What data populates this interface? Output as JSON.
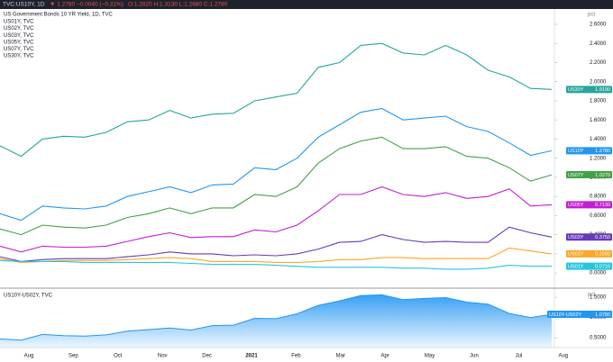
{
  "header": {
    "symbol": "TVC:US10Y, 1D",
    "change": "▼ 1.2780 −0.0040 (−0.31%)",
    "ohlc": "O:1.2820 H:1.3130 L:1.2680 C:1.2780"
  },
  "chart_data": [
    {
      "type": "line",
      "title": "US Government Bonds 10 YR Yield, 1D, TVC",
      "legend": [
        "US01Y, TVC",
        "US02Y, TVC",
        "US03Y, TVC",
        "US05Y, TVC",
        "US07Y, TVC",
        "US30Y, TVC"
      ],
      "y_label": "pct",
      "ylim": [
        -0.14,
        2.76
      ],
      "yticks": [
        {
          "value": 0,
          "label": "0.0000"
        },
        {
          "value": 0.2,
          "label": "0.2000"
        },
        {
          "value": 0.4,
          "label": "0.4000"
        },
        {
          "value": 0.6,
          "label": "0.6000"
        },
        {
          "value": 0.8,
          "label": "0.8000"
        },
        {
          "value": 1,
          "label": "1.0000"
        },
        {
          "value": 1.2,
          "label": "1.2000"
        },
        {
          "value": 1.4,
          "label": "1.4000"
        },
        {
          "value": 1.6,
          "label": "1.6000"
        },
        {
          "value": 1.8,
          "label": "1.8000"
        },
        {
          "value": 2,
          "label": "2.0000"
        },
        {
          "value": 2.2,
          "label": "2.2000"
        },
        {
          "value": 2.4,
          "label": "2.4000"
        },
        {
          "value": 2.6,
          "label": "2.6000"
        }
      ],
      "series": [
        {
          "name": "US30Y",
          "color": "#26a69a",
          "values": [
            1.33,
            1.22,
            1.4,
            1.43,
            1.42,
            1.47,
            1.58,
            1.6,
            1.7,
            1.62,
            1.66,
            1.67,
            1.8,
            1.84,
            1.88,
            2.15,
            2.2,
            2.38,
            2.4,
            2.3,
            2.28,
            2.38,
            2.28,
            2.12,
            2.05,
            1.93,
            1.919
          ],
          "value_labels": [
            null,
            null,
            null,
            null,
            null,
            null,
            null,
            null,
            null,
            null,
            null,
            null,
            null,
            null,
            null,
            null,
            null,
            null,
            null,
            null,
            null,
            null,
            null,
            null,
            null,
            null,
            "1.9190"
          ]
        },
        {
          "name": "US10Y",
          "color": "#2196f3",
          "values": [
            0.62,
            0.55,
            0.7,
            0.68,
            0.67,
            0.7,
            0.8,
            0.85,
            0.9,
            0.84,
            0.92,
            0.93,
            1.1,
            1.08,
            1.2,
            1.42,
            1.55,
            1.68,
            1.72,
            1.6,
            1.62,
            1.64,
            1.53,
            1.48,
            1.36,
            1.23,
            1.278
          ],
          "value_labels": [
            null,
            null,
            null,
            null,
            null,
            null,
            null,
            null,
            null,
            null,
            null,
            null,
            null,
            null,
            null,
            null,
            null,
            null,
            null,
            null,
            null,
            null,
            null,
            null,
            null,
            null,
            "1.2780"
          ]
        },
        {
          "name": "US07Y",
          "color": "#43a047",
          "values": [
            0.46,
            0.4,
            0.5,
            0.48,
            0.47,
            0.5,
            0.58,
            0.62,
            0.68,
            0.62,
            0.68,
            0.68,
            0.82,
            0.8,
            0.9,
            1.15,
            1.3,
            1.38,
            1.42,
            1.3,
            1.3,
            1.32,
            1.22,
            1.2,
            1.1,
            0.96,
            1.027
          ],
          "value_labels": [
            null,
            null,
            null,
            null,
            null,
            null,
            null,
            null,
            null,
            null,
            null,
            null,
            null,
            null,
            null,
            null,
            null,
            null,
            null,
            null,
            null,
            null,
            null,
            null,
            null,
            null,
            "1.0270"
          ]
        },
        {
          "name": "US05Y",
          "color": "#c21fd1",
          "values": [
            0.28,
            0.22,
            0.28,
            0.27,
            0.27,
            0.28,
            0.33,
            0.38,
            0.42,
            0.37,
            0.38,
            0.38,
            0.45,
            0.43,
            0.5,
            0.65,
            0.82,
            0.82,
            0.9,
            0.82,
            0.8,
            0.84,
            0.78,
            0.8,
            0.88,
            0.7,
            0.713
          ],
          "value_labels": [
            null,
            null,
            null,
            null,
            null,
            null,
            null,
            null,
            null,
            null,
            null,
            null,
            null,
            null,
            null,
            null,
            null,
            null,
            null,
            null,
            null,
            null,
            null,
            null,
            null,
            null,
            "0.7130"
          ]
        },
        {
          "name": "US03Y",
          "color": "#673ab7",
          "values": [
            0.17,
            0.12,
            0.14,
            0.15,
            0.15,
            0.15,
            0.17,
            0.19,
            0.22,
            0.2,
            0.2,
            0.18,
            0.19,
            0.18,
            0.2,
            0.25,
            0.32,
            0.33,
            0.4,
            0.35,
            0.32,
            0.33,
            0.32,
            0.32,
            0.48,
            0.42,
            0.375
          ],
          "value_labels": [
            null,
            null,
            null,
            null,
            null,
            null,
            null,
            null,
            null,
            null,
            null,
            null,
            null,
            null,
            null,
            null,
            null,
            null,
            null,
            null,
            null,
            null,
            null,
            null,
            null,
            null,
            "0.3750"
          ]
        },
        {
          "name": "US02Y",
          "color": "#f9a825",
          "values": [
            0.15,
            0.11,
            0.12,
            0.13,
            0.13,
            0.13,
            0.14,
            0.15,
            0.16,
            0.15,
            0.12,
            0.12,
            0.12,
            0.11,
            0.11,
            0.12,
            0.14,
            0.14,
            0.16,
            0.16,
            0.15,
            0.15,
            0.15,
            0.15,
            0.26,
            0.23,
            0.2
          ],
          "value_labels": [
            null,
            null,
            null,
            null,
            null,
            null,
            null,
            null,
            null,
            null,
            null,
            null,
            null,
            null,
            null,
            null,
            null,
            null,
            null,
            null,
            null,
            null,
            null,
            null,
            null,
            null,
            "0.2000"
          ]
        },
        {
          "name": "US01Y",
          "color": "#26c6da",
          "values": [
            0.13,
            0.12,
            0.12,
            0.12,
            0.11,
            0.11,
            0.11,
            0.11,
            0.11,
            0.1,
            0.09,
            0.09,
            0.09,
            0.08,
            0.07,
            0.06,
            0.06,
            0.06,
            0.06,
            0.05,
            0.05,
            0.04,
            0.04,
            0.05,
            0.08,
            0.07,
            0.071
          ],
          "value_labels": [
            null,
            null,
            null,
            null,
            null,
            null,
            null,
            null,
            null,
            null,
            null,
            null,
            null,
            null,
            null,
            null,
            null,
            null,
            null,
            null,
            null,
            null,
            null,
            null,
            null,
            null,
            "0.0710"
          ]
        }
      ]
    },
    {
      "type": "area",
      "title": "US10Y-US02Y, TVC",
      "y_label": "pct",
      "ylim": [
        0.256,
        1.68
      ],
      "yticks": [
        {
          "value": 0.5,
          "label": "0.5000"
        },
        {
          "value": 1,
          "label": "1.0000"
        },
        {
          "value": 1.5,
          "label": "1.5000"
        }
      ],
      "x_labels": [
        "Aug",
        "Sep",
        "Oct",
        "Nov",
        "Dec",
        "2021",
        "Feb",
        "Mar",
        "Apr",
        "May",
        "Jun",
        "Jul",
        "Aug"
      ],
      "series": [
        {
          "name": "US10Y-US02Y",
          "color": "#2196f3",
          "values": [
            0.47,
            0.44,
            0.58,
            0.55,
            0.54,
            0.57,
            0.66,
            0.7,
            0.74,
            0.69,
            0.8,
            0.81,
            0.98,
            0.97,
            1.09,
            1.3,
            1.41,
            1.54,
            1.56,
            1.44,
            1.47,
            1.49,
            1.38,
            1.33,
            1.1,
            1.0,
            1.078
          ],
          "value_labels": [
            null,
            null,
            null,
            null,
            null,
            null,
            null,
            null,
            null,
            null,
            null,
            null,
            null,
            null,
            null,
            null,
            null,
            null,
            null,
            null,
            null,
            null,
            null,
            null,
            null,
            null,
            "1.0780"
          ]
        }
      ]
    }
  ]
}
